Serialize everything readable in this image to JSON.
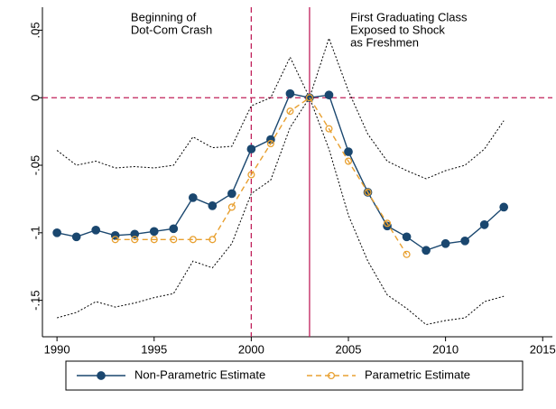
{
  "chart_data": {
    "type": "line",
    "x": [
      1990,
      1991,
      1992,
      1993,
      1994,
      1995,
      1996,
      1997,
      1998,
      1999,
      2000,
      2001,
      2002,
      2003,
      2004,
      2005,
      2006,
      2007,
      2008,
      2009,
      2010,
      2011,
      2012,
      2013
    ],
    "xlim": [
      1989.25,
      2015.5
    ],
    "xticks": [
      1990,
      1995,
      2000,
      2005,
      2010,
      2015
    ],
    "ylim": [
      -0.177,
      0.067
    ],
    "yticks": [
      {
        "value": 0.05,
        "label": ".05"
      },
      0,
      {
        "value": -0.05,
        "label": "-.05"
      },
      {
        "value": -0.1,
        "label": "-.1"
      },
      {
        "value": -0.15,
        "label": "-.15"
      }
    ],
    "series": [
      {
        "name": "Non-Parametric Estimate",
        "color": "#1a476f",
        "style": "solid",
        "marker": "filled",
        "values": [
          -0.1,
          -0.103,
          -0.098,
          -0.102,
          -0.101,
          -0.099,
          -0.097,
          -0.074,
          -0.08,
          -0.071,
          -0.038,
          -0.031,
          0.003,
          0,
          0.002,
          -0.04,
          -0.07,
          -0.095,
          -0.103,
          -0.113,
          -0.108,
          -0.106,
          -0.094,
          -0.081
        ]
      },
      {
        "name": "Parametric Estimate",
        "color": "#e8a030",
        "style": "dashed",
        "marker": "hollow",
        "values": [
          null,
          null,
          null,
          -0.105,
          -0.105,
          -0.105,
          -0.105,
          -0.105,
          -0.105,
          -0.081,
          -0.057,
          -0.034,
          -0.01,
          0,
          -0.023,
          -0.047,
          -0.07,
          -0.093,
          -0.116,
          null,
          null,
          null,
          null,
          null
        ]
      },
      {
        "color": "#000000",
        "style": "dotted",
        "values": [
          -0.039,
          -0.05,
          -0.047,
          -0.052,
          -0.051,
          -0.052,
          -0.05,
          -0.029,
          -0.037,
          -0.036,
          -0.006,
          0,
          0.03,
          0,
          0.044,
          0.005,
          -0.027,
          -0.047,
          -0.054,
          -0.06,
          -0.054,
          -0.05,
          -0.038,
          -0.017
        ]
      },
      {
        "color": "#000000",
        "style": "dotted",
        "values": [
          -0.163,
          -0.159,
          -0.151,
          -0.155,
          -0.152,
          -0.148,
          -0.145,
          -0.121,
          -0.126,
          -0.108,
          -0.071,
          -0.061,
          -0.022,
          0,
          -0.038,
          -0.087,
          -0.121,
          -0.146,
          -0.156,
          -0.168,
          -0.165,
          -0.163,
          -0.151,
          -0.147
        ]
      }
    ],
    "reference_lines": [
      {
        "axis": "x",
        "value": 2000,
        "style": "dashed",
        "color": "#c0205a"
      },
      {
        "axis": "x",
        "value": 2003,
        "style": "solid",
        "color": "#c0205a"
      },
      {
        "axis": "y",
        "value": 0,
        "style": "dashed",
        "color": "#c0205a"
      }
    ],
    "annotations": [
      {
        "x": 1993.8,
        "lines": [
          "Beginning of",
          "Dot-Com Crash"
        ]
      },
      {
        "x": 2005.1,
        "lines": [
          "First Graduating Class",
          "Exposed to Shock",
          "as Freshmen"
        ]
      }
    ]
  }
}
